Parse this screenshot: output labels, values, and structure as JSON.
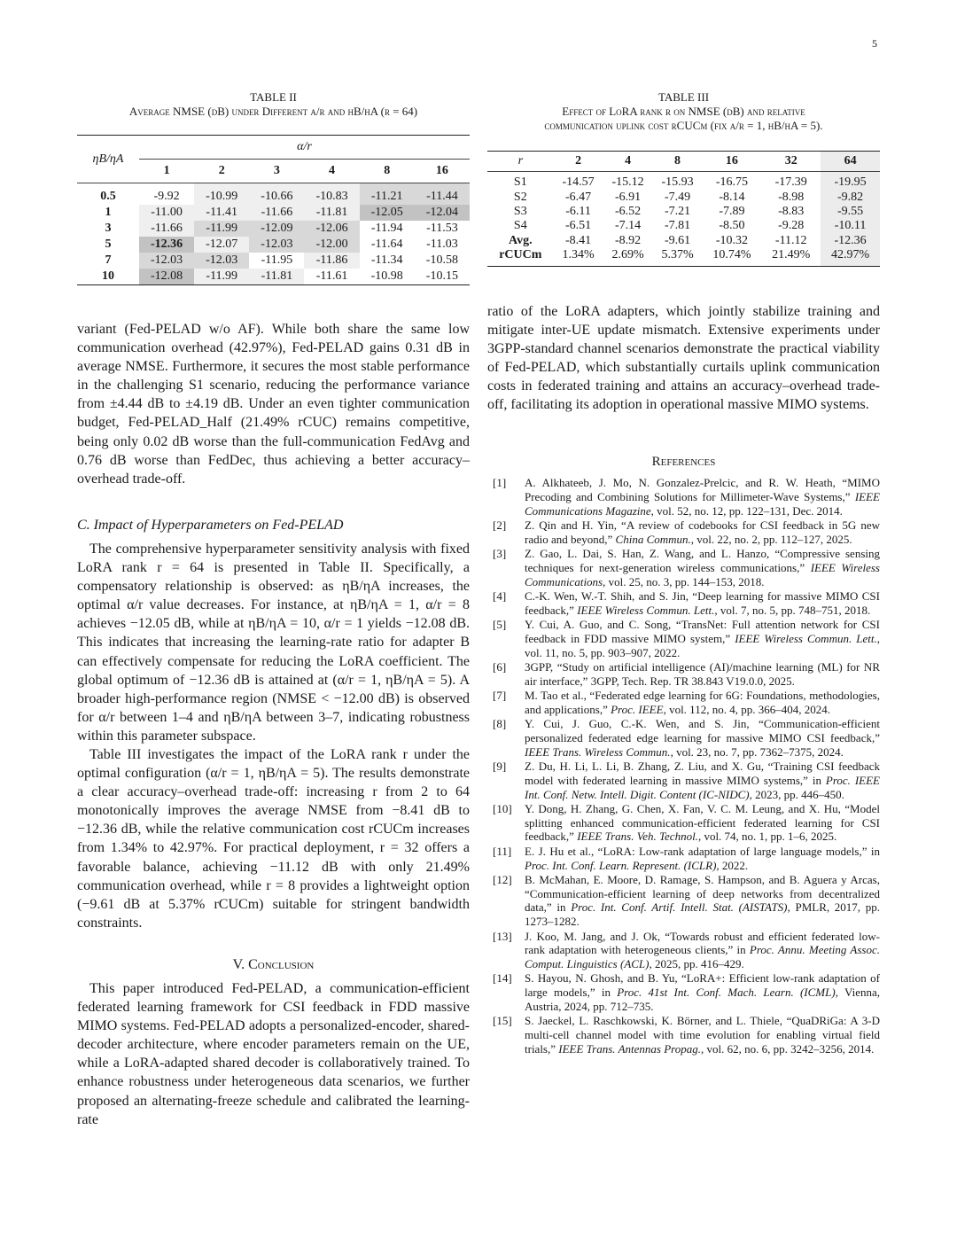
{
  "page_number": "5",
  "table2": {
    "label": "TABLE II",
    "caption": "Average NMSE (dB) under Different α/r and ηB/ηA (r = 64)",
    "row_header": "ηB/ηA",
    "col_group": "α/r",
    "cols": [
      "1",
      "2",
      "3",
      "4",
      "8",
      "16"
    ],
    "rows": [
      {
        "label": "0.5",
        "values": [
          "-9.92",
          "-10.99",
          "-10.66",
          "-10.83",
          "-11.21",
          "-11.44"
        ],
        "shade": [
          0,
          1,
          1,
          1,
          2,
          2
        ]
      },
      {
        "label": "1",
        "values": [
          "-11.00",
          "-11.41",
          "-11.66",
          "-11.81",
          "-12.05",
          "-12.04"
        ],
        "shade": [
          1,
          1,
          1,
          1,
          3,
          3
        ]
      },
      {
        "label": "3",
        "values": [
          "-11.66",
          "-11.99",
          "-12.09",
          "-12.06",
          "-11.94",
          "-11.53"
        ],
        "shade": [
          1,
          2,
          2,
          2,
          0,
          0
        ]
      },
      {
        "label": "5",
        "values": [
          "-12.36",
          "-12.07",
          "-12.03",
          "-12.00",
          "-11.64",
          "-11.03"
        ],
        "shade": [
          3,
          1,
          2,
          2,
          0,
          0
        ]
      },
      {
        "label": "7",
        "values": [
          "-12.03",
          "-12.03",
          "-11.95",
          "-11.86",
          "-11.34",
          "-10.58"
        ],
        "shade": [
          2,
          2,
          0,
          1,
          0,
          0
        ]
      },
      {
        "label": "10",
        "values": [
          "-12.08",
          "-11.99",
          "-11.81",
          "-11.61",
          "-10.98",
          "-10.15"
        ],
        "shade": [
          3,
          1,
          1,
          0,
          0,
          0
        ]
      }
    ],
    "bold_cell": "-12.36",
    "shade_colors": [
      "#ffffff",
      "#efefef",
      "#d8d8d8",
      "#c2c2c2"
    ]
  },
  "table3": {
    "label": "TABLE III",
    "caption_line1": "Effect of LoRA rank r on NMSE (dB) and relative",
    "caption_line2": "communication uplink cost rCUCm (fix α/r = 1, ηB/ηA = 5).",
    "row_header": "r",
    "cols": [
      "2",
      "4",
      "8",
      "16",
      "32",
      "64"
    ],
    "rows": [
      {
        "label": "S1",
        "values": [
          "-14.57",
          "-15.12",
          "-15.93",
          "-16.75",
          "-17.39",
          "-19.95"
        ]
      },
      {
        "label": "S2",
        "values": [
          "-6.47",
          "-6.91",
          "-7.49",
          "-8.14",
          "-8.98",
          "-9.82"
        ]
      },
      {
        "label": "S3",
        "values": [
          "-6.11",
          "-6.52",
          "-7.21",
          "-7.89",
          "-8.83",
          "-9.55"
        ]
      },
      {
        "label": "S4",
        "values": [
          "-6.51",
          "-7.14",
          "-7.81",
          "-8.50",
          "-9.28",
          "-10.11"
        ]
      },
      {
        "label": "Avg.",
        "values": [
          "-8.41",
          "-8.92",
          "-9.61",
          "-10.32",
          "-11.12",
          "-12.36"
        ]
      },
      {
        "label": "rCUCm",
        "values": [
          "1.34%",
          "2.69%",
          "5.37%",
          "10.74%",
          "21.49%",
          "42.97%"
        ]
      }
    ],
    "highlight_color": "#ececec"
  },
  "left": {
    "p1": "variant (Fed-PELAD w/o AF). While both share the same low communication overhead (42.97%), Fed-PELAD gains 0.31 dB in average NMSE. Furthermore, it secures the most stable performance in the challenging S1 scenario, reducing the performance variance from ±4.44 dB to ±4.19 dB. Under an even tighter communication budget, Fed-PELAD_Half (21.49% rCUC) remains competitive, being only 0.02 dB worse than the full-communication FedAvg and 0.76 dB worse than FedDec, thus achieving a better accuracy–overhead trade-off.",
    "sec_c": "C. Impact of Hyperparameters on Fed-PELAD",
    "p2": "The comprehensive hyperparameter sensitivity analysis with fixed LoRA rank r = 64 is presented in Table II. Specifically, a compensatory relationship is observed: as ηB/ηA increases, the optimal α/r value decreases. For instance, at ηB/ηA = 1, α/r = 8 achieves −12.05 dB, while at ηB/ηA = 10, α/r = 1 yields −12.08 dB. This indicates that increasing the learning-rate ratio for adapter B can effectively compensate for reducing the LoRA coefficient. The global optimum of −12.36 dB is attained at (α/r = 1, ηB/ηA = 5). A broader high-performance region (NMSE < −12.00 dB) is observed for α/r between 1–4 and ηB/ηA between 3–7, indicating robustness within this parameter subspace.",
    "p3": "Table III investigates the impact of the LoRA rank r under the optimal configuration (α/r = 1, ηB/ηA = 5). The results demonstrate a clear accuracy–overhead trade-off: increasing r from 2 to 64 monotonically improves the average NMSE from −8.41 dB to −12.36 dB, while the relative communication cost rCUCm increases from 1.34% to 42.97%. For practical deployment, r = 32 offers a favorable balance, achieving −11.12 dB with only 21.49% communication overhead, while r = 8 provides a lightweight option (−9.61 dB at 5.37% rCUCm) suitable for stringent bandwidth constraints.",
    "sec_v": "V. Conclusion",
    "p4": "This paper introduced Fed-PELAD, a communication-efficient federated learning framework for CSI feedback in FDD massive MIMO systems. Fed-PELAD adopts a personalized-encoder, shared-decoder architecture, where encoder parameters remain on the UE, while a LoRA-adapted shared decoder is collaboratively trained. To enhance robustness under heterogeneous data scenarios, we further proposed an alternating-freeze schedule and calibrated the learning-rate"
  },
  "right": {
    "p1": "ratio of the LoRA adapters, which jointly stabilize training and mitigate inter-UE update mismatch. Extensive experiments under 3GPP-standard channel scenarios demonstrate the practical viability of Fed-PELAD, which substantially curtails uplink communication costs in federated training and attains an accuracy–overhead trade-off, facilitating its adoption in operational massive MIMO systems.",
    "references_heading": "References"
  },
  "references": [
    {
      "n": "[1]",
      "a": "A. Alkhateeb, J. Mo, N. Gonzalez-Prelcic, and R. W. Heath, “MIMO Precoding and Combining Solutions for Millimeter-Wave Systems,” ",
      "i": "IEEE Communications Magazine",
      "c": ", vol. 52, no. 12, pp. 122–131, Dec. 2014."
    },
    {
      "n": "[2]",
      "a": "Z. Qin and H. Yin, “A review of codebooks for CSI feedback in 5G new radio and beyond,” ",
      "i": "China Commun.",
      "c": ", vol. 22, no. 2, pp. 112–127, 2025."
    },
    {
      "n": "[3]",
      "a": "Z. Gao, L. Dai, S. Han, Z. Wang, and L. Hanzo, “Compressive sensing techniques for next-generation wireless communications,” ",
      "i": "IEEE Wireless Communications",
      "c": ", vol. 25, no. 3, pp. 144–153, 2018."
    },
    {
      "n": "[4]",
      "a": "C.-K. Wen, W.-T. Shih, and S. Jin, “Deep learning for massive MIMO CSI feedback,” ",
      "i": "IEEE Wireless Commun. Lett.",
      "c": ", vol. 7, no. 5, pp. 748–751, 2018."
    },
    {
      "n": "[5]",
      "a": "Y. Cui, A. Guo, and C. Song, “TransNet: Full attention network for CSI feedback in FDD massive MIMO system,” ",
      "i": "IEEE Wireless Commun. Lett.",
      "c": ", vol. 11, no. 5, pp. 903–907, 2022."
    },
    {
      "n": "[6]",
      "a": "3GPP, “Study on artificial intelligence (AI)/machine learning (ML) for NR air interface,” 3GPP, Tech. Rep. TR 38.843 V19.0.0, 2025.",
      "i": "",
      "c": ""
    },
    {
      "n": "[7]",
      "a": "M. Tao et al., “Federated edge learning for 6G: Foundations, methodologies, and applications,” ",
      "i": "Proc. IEEE",
      "c": ", vol. 112, no. 4, pp. 366–404, 2024."
    },
    {
      "n": "[8]",
      "a": "Y. Cui, J. Guo, C.-K. Wen, and S. Jin, “Communication-efficient personalized federated edge learning for massive MIMO CSI feedback,” ",
      "i": "IEEE Trans. Wireless Commun.",
      "c": ", vol. 23, no. 7, pp. 7362–7375, 2024."
    },
    {
      "n": "[9]",
      "a": "Z. Du, H. Li, L. Li, B. Zhang, Z. Liu, and X. Gu, “Training CSI feedback model with federated learning in massive MIMO systems,” in ",
      "i": "Proc. IEEE Int. Conf. Netw. Intell. Digit. Content (IC-NIDC)",
      "c": ", 2023, pp. 446–450."
    },
    {
      "n": "[10]",
      "a": "Y. Dong, H. Zhang, G. Chen, X. Fan, V. C. M. Leung, and X. Hu, “Model splitting enhanced communication-efficient federated learning for CSI feedback,” ",
      "i": "IEEE Trans. Veh. Technol.",
      "c": ", vol. 74, no. 1, pp. 1–6, 2025."
    },
    {
      "n": "[11]",
      "a": "E. J. Hu et al., “LoRA: Low-rank adaptation of large language models,” in ",
      "i": "Proc. Int. Conf. Learn. Represent. (ICLR)",
      "c": ", 2022."
    },
    {
      "n": "[12]",
      "a": "B. McMahan, E. Moore, D. Ramage, S. Hampson, and B. Aguera y Arcas, “Communication-efficient learning of deep networks from decentralized data,” in ",
      "i": "Proc. Int. Conf. Artif. Intell. Stat. (AISTATS)",
      "c": ", PMLR, 2017, pp. 1273–1282."
    },
    {
      "n": "[13]",
      "a": "J. Koo, M. Jang, and J. Ok, “Towards robust and efficient federated low-rank adaptation with heterogeneous clients,” in ",
      "i": "Proc. Annu. Meeting Assoc. Comput. Linguistics (ACL)",
      "c": ", 2025, pp. 416–429."
    },
    {
      "n": "[14]",
      "a": "S. Hayou, N. Ghosh, and B. Yu, “LoRA+: Efficient low-rank adaptation of large models,” in ",
      "i": "Proc. 41st Int. Conf. Mach. Learn. (ICML)",
      "c": ", Vienna, Austria, 2024, pp. 712–735."
    },
    {
      "n": "[15]",
      "a": "S. Jaeckel, L. Raschkowski, K. Börner, and L. Thiele, “QuaDRiGa: A 3-D multi-cell channel model with time evolution for enabling virtual field trials,” ",
      "i": "IEEE Trans. Antennas Propag.",
      "c": ", vol. 62, no. 6, pp. 3242–3256, 2014."
    }
  ]
}
